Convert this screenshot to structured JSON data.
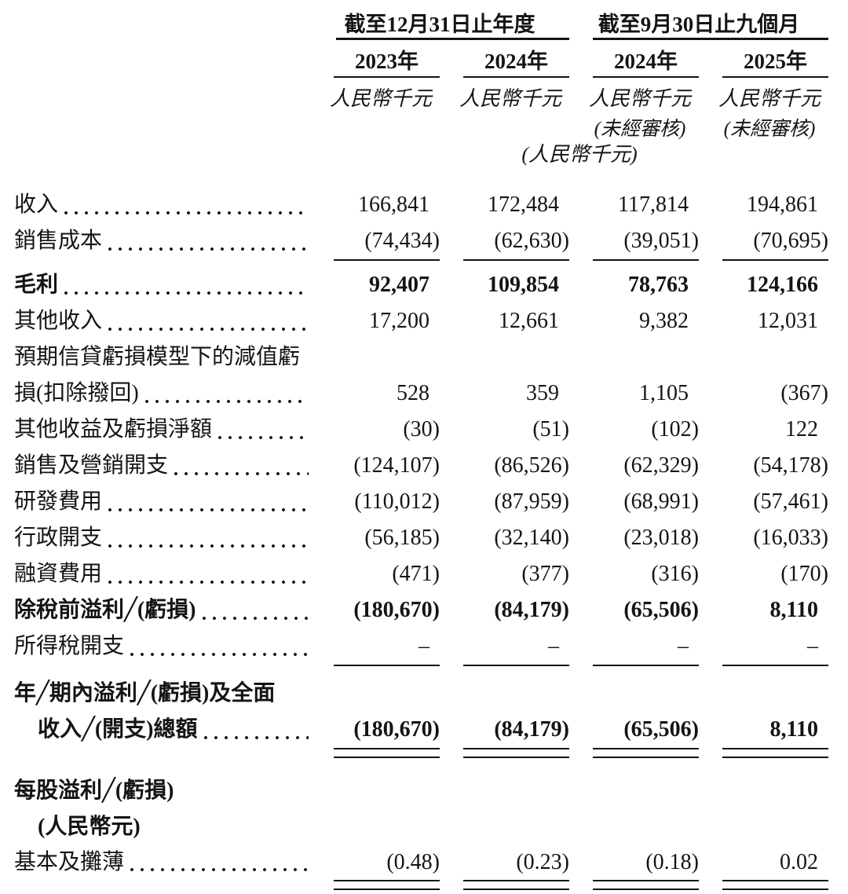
{
  "colors": {
    "background": "#ffffff",
    "text": "#141414",
    "rule": "#141414"
  },
  "header": {
    "groups": [
      {
        "title": "截至12月31日止年度",
        "columns": [
          "2023年",
          "2024年"
        ]
      },
      {
        "title": "截至9月30日止九個月",
        "columns": [
          "2024年",
          "2025年"
        ]
      }
    ],
    "unit_labels": [
      "人民幣千元",
      "人民幣千元",
      "人民幣千元",
      "人民幣千元"
    ],
    "unaudited_labels": [
      "(未經審核)",
      "(未經審核)"
    ],
    "combined_unit_label": "(人民幣千元)"
  },
  "table": {
    "rows": [
      {
        "label": "收入",
        "values": [
          "166,841",
          "172,484",
          "117,814",
          "194,861"
        ]
      },
      {
        "label": "銷售成本",
        "values": [
          "(74,434)",
          "(62,630)",
          "(39,051)",
          "(70,695)"
        ]
      },
      {
        "label": "毛利",
        "values": [
          "92,407",
          "109,854",
          "78,763",
          "124,166"
        ]
      },
      {
        "label": "其他收入",
        "values": [
          "17,200",
          "12,661",
          "9,382",
          "12,031"
        ]
      },
      {
        "label": "預期信貸虧損模型下的減值虧",
        "values": [
          "",
          "",
          "",
          ""
        ]
      },
      {
        "label": "損(扣除撥回)",
        "values": [
          "528",
          "359",
          "1,105",
          "(367)"
        ]
      },
      {
        "label": "其他收益及虧損淨額",
        "values": [
          "(30)",
          "(51)",
          "(102)",
          "122"
        ]
      },
      {
        "label": "銷售及營銷開支",
        "values": [
          "(124,107)",
          "(86,526)",
          "(62,329)",
          "(54,178)"
        ]
      },
      {
        "label": "研發費用",
        "values": [
          "(110,012)",
          "(87,959)",
          "(68,991)",
          "(57,461)"
        ]
      },
      {
        "label": "行政開支",
        "values": [
          "(56,185)",
          "(32,140)",
          "(23,018)",
          "(16,033)"
        ]
      },
      {
        "label": "融資費用",
        "values": [
          "(471)",
          "(377)",
          "(316)",
          "(170)"
        ]
      },
      {
        "label": "除稅前溢利╱(虧損)",
        "values": [
          "(180,670)",
          "(84,179)",
          "(65,506)",
          "8,110"
        ]
      },
      {
        "label": "所得稅開支",
        "values": [
          "–",
          "–",
          "–",
          "–"
        ]
      },
      {
        "label": "年╱期內溢利╱(虧損)及全面",
        "values": [
          "",
          "",
          "",
          ""
        ]
      },
      {
        "label": "收入╱(開支)總額",
        "values": [
          "(180,670)",
          "(84,179)",
          "(65,506)",
          "8,110"
        ]
      },
      {
        "label": "每股溢利╱(虧損)",
        "values": [
          "",
          "",
          "",
          ""
        ]
      },
      {
        "label": "(人民幣元)",
        "values": [
          "",
          "",
          "",
          ""
        ]
      },
      {
        "label": "基本及攤薄",
        "values": [
          "(0.48)",
          "(0.23)",
          "(0.18)",
          "0.02"
        ]
      }
    ]
  }
}
